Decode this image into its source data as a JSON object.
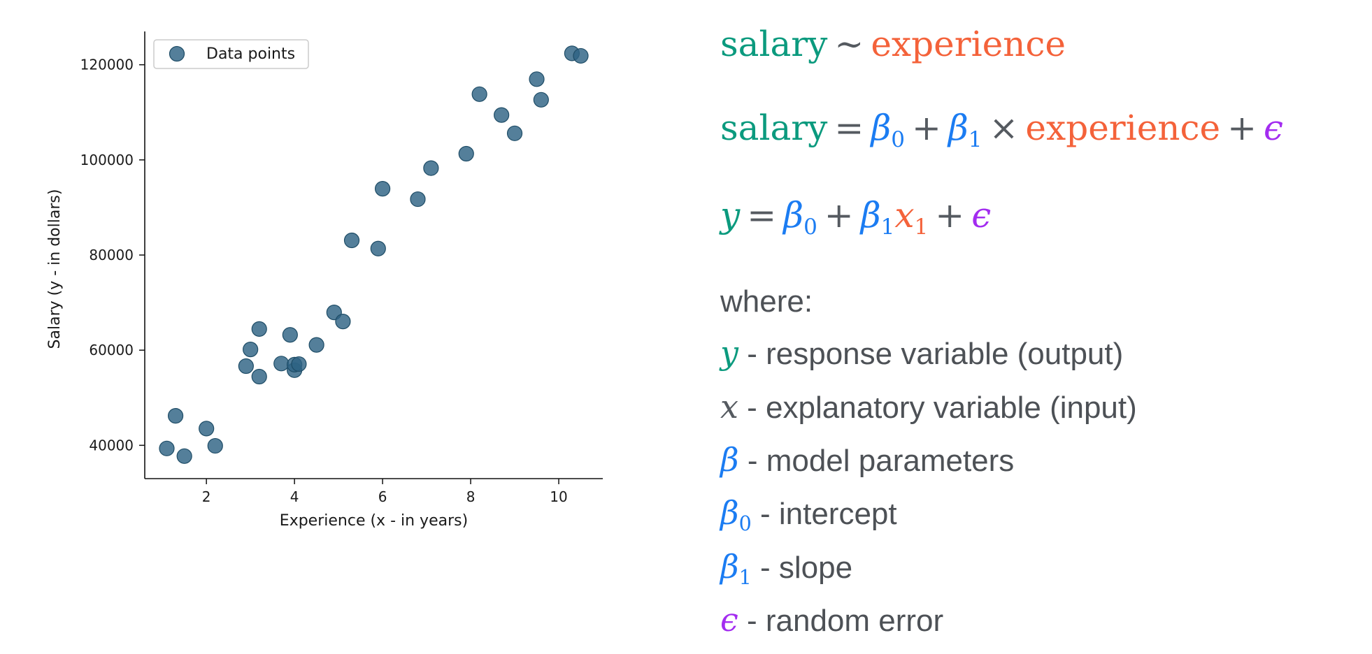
{
  "chart_data": {
    "type": "scatter",
    "xlabel": "Experience (x - in years)",
    "ylabel": "Salary (y - in dollars)",
    "xlim": [
      0.6,
      11.0
    ],
    "ylim": [
      33000,
      127000
    ],
    "x_ticks": [
      2,
      4,
      6,
      8,
      10
    ],
    "y_ticks": [
      40000,
      60000,
      80000,
      100000,
      120000
    ],
    "grid": false,
    "legend_position": "top-left",
    "marker_color": "#2e6384",
    "series": [
      {
        "name": "Data points",
        "points": [
          {
            "x": 1.1,
            "y": 39343
          },
          {
            "x": 1.3,
            "y": 46205
          },
          {
            "x": 1.5,
            "y": 37731
          },
          {
            "x": 2.0,
            "y": 43525
          },
          {
            "x": 2.2,
            "y": 39891
          },
          {
            "x": 2.9,
            "y": 56642
          },
          {
            "x": 3.0,
            "y": 60150
          },
          {
            "x": 3.2,
            "y": 54445
          },
          {
            "x": 3.2,
            "y": 64445
          },
          {
            "x": 3.7,
            "y": 57189
          },
          {
            "x": 3.9,
            "y": 63218
          },
          {
            "x": 4.0,
            "y": 55794
          },
          {
            "x": 4.0,
            "y": 56957
          },
          {
            "x": 4.1,
            "y": 57081
          },
          {
            "x": 4.5,
            "y": 61111
          },
          {
            "x": 4.9,
            "y": 67938
          },
          {
            "x": 5.1,
            "y": 66029
          },
          {
            "x": 5.3,
            "y": 83088
          },
          {
            "x": 5.9,
            "y": 81363
          },
          {
            "x": 6.0,
            "y": 93940
          },
          {
            "x": 6.8,
            "y": 91738
          },
          {
            "x": 7.1,
            "y": 98273
          },
          {
            "x": 7.9,
            "y": 101302
          },
          {
            "x": 8.2,
            "y": 113812
          },
          {
            "x": 8.7,
            "y": 109431
          },
          {
            "x": 9.0,
            "y": 105582
          },
          {
            "x": 9.5,
            "y": 116969
          },
          {
            "x": 9.6,
            "y": 112635
          },
          {
            "x": 10.3,
            "y": 122391
          },
          {
            "x": 10.5,
            "y": 121872
          }
        ]
      }
    ]
  },
  "formulas": {
    "eq1": {
      "lhs": "salary",
      "op": "∼",
      "rhs": "experience"
    },
    "eq2": {
      "lhs": "salary",
      "eq": "=",
      "b": "β",
      "sub0": "0",
      "plus1": "+",
      "sub1": "1",
      "times": "×",
      "var": "experience",
      "plus2": "+",
      "err": "ϵ"
    },
    "eq3": {
      "lhs": "y",
      "eq": "=",
      "b": "β",
      "sub0": "0",
      "plus1": "+",
      "sub1": "1",
      "x": "x",
      "xsub": "1",
      "plus2": "+",
      "err": "ϵ"
    }
  },
  "definitions": {
    "heading": "where:",
    "items": [
      {
        "symbol": "y",
        "sub": "",
        "text": " - response variable (output)",
        "color": "#0b9a7e"
      },
      {
        "symbol": "x",
        "sub": "",
        "text": " - explanatory variable (input)",
        "color": "#555a60"
      },
      {
        "symbol": "β",
        "sub": "",
        "text": " - model parameters",
        "color": "#1b7cf2"
      },
      {
        "symbol": "β",
        "sub": "0",
        "text": " - intercept",
        "color": "#1b7cf2"
      },
      {
        "symbol": "β",
        "sub": "1",
        "text": " - slope",
        "color": "#1b7cf2"
      },
      {
        "symbol": "ϵ",
        "sub": "",
        "text": " - random error",
        "color": "#a32cf0"
      }
    ]
  }
}
